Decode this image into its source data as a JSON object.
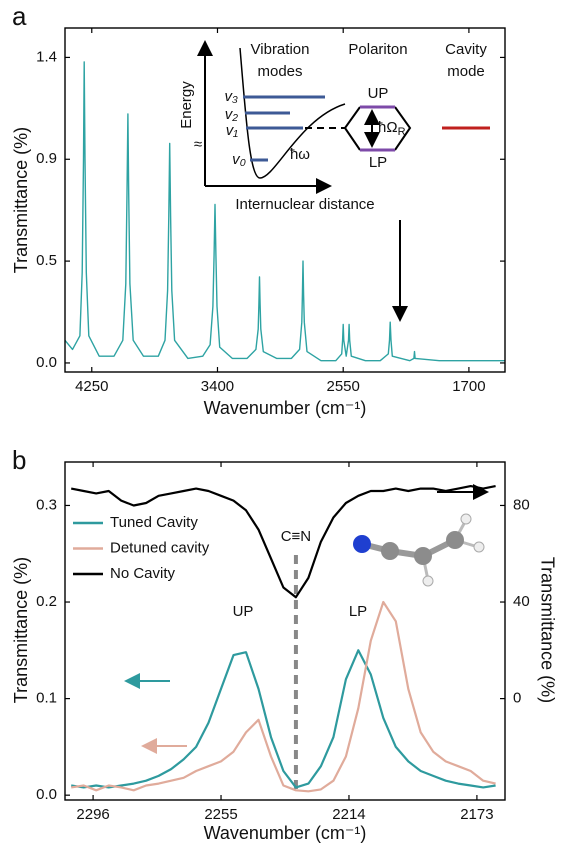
{
  "chart_data": [
    {
      "type": "line",
      "panel_label": "a",
      "xlabel": "Wavenumber (cm⁻¹)",
      "ylabel": "Transmittance (%)",
      "xlim": [
        4431,
        1456
      ],
      "xticks": [
        4250,
        3400,
        2550,
        1700
      ],
      "ylim": [
        -0.04,
        1.48
      ],
      "yticks": [
        {
          "value": 0,
          "label": "0.0"
        },
        {
          "value": 0.45,
          "label": "0.5"
        },
        0.9,
        {
          "value": 1.35,
          "label": "1.4"
        }
      ],
      "color": "#2ea3a3",
      "x": [
        4431,
        4380,
        4330,
        4315,
        4306,
        4301,
        4296,
        4287,
        4270,
        4200,
        4100,
        4040,
        4020,
        4012,
        4006,
        4000,
        3992,
        3970,
        3900,
        3800,
        3755,
        3737,
        3729,
        3723,
        3717,
        3709,
        3690,
        3600,
        3500,
        3450,
        3431,
        3423,
        3417,
        3411,
        3403,
        3385,
        3300,
        3200,
        3140,
        3125,
        3120,
        3116,
        3112,
        3107,
        3090,
        3000,
        2900,
        2845,
        2830,
        2826,
        2822,
        2818,
        2813,
        2795,
        2700,
        2600,
        2560,
        2554,
        2550,
        2546,
        2530,
        2514,
        2510,
        2506,
        2495,
        2400,
        2300,
        2245,
        2237,
        2232,
        2227,
        2218,
        2100,
        2072,
        2068,
        2064,
        1900,
        1700,
        1456
      ],
      "values": [
        0.1,
        0.06,
        0.12,
        0.4,
        0.9,
        1.33,
        0.9,
        0.4,
        0.12,
        0.03,
        0.03,
        0.1,
        0.35,
        0.75,
        1.1,
        0.75,
        0.35,
        0.1,
        0.03,
        0.03,
        0.1,
        0.32,
        0.65,
        0.97,
        0.65,
        0.32,
        0.1,
        0.02,
        0.03,
        0.08,
        0.25,
        0.48,
        0.7,
        0.48,
        0.25,
        0.07,
        0.02,
        0.02,
        0.06,
        0.15,
        0.26,
        0.38,
        0.26,
        0.15,
        0.05,
        0.02,
        0.02,
        0.06,
        0.18,
        0.3,
        0.45,
        0.3,
        0.18,
        0.05,
        0.01,
        0.01,
        0.04,
        0.1,
        0.17,
        0.1,
        0.03,
        0.1,
        0.17,
        0.1,
        0.03,
        0.01,
        0.01,
        0.04,
        0.1,
        0.18,
        0.1,
        0.03,
        0.01,
        0.02,
        0.05,
        0.02,
        0.01,
        0.01,
        0.01
      ],
      "inset": {
        "energy": "Energy",
        "break": "≈",
        "vibration": "Vibration",
        "modes": "modes",
        "distance": "Internuclear distance",
        "v3": "v₃",
        "v2": "v₂",
        "v1": "v₁",
        "v0": "v₀",
        "hw": "ħω",
        "polariton": "Polariton",
        "cavity": "Cavity",
        "mode": "mode",
        "up": "UP",
        "lp": "LP",
        "rabi": "ħΩ",
        "rabi_sub": "R"
      }
    },
    {
      "type": "line",
      "panel_label": "b",
      "xlabel": "Wavenumber (cm⁻¹)",
      "ylabel": "Transmittance (%)",
      "y2label": "Transmittance (%)",
      "xlim": [
        2305,
        2164
      ],
      "xticks": [
        2296,
        2255,
        2214,
        2173
      ],
      "ylim": [
        -0.005,
        0.345
      ],
      "yticks": [
        {
          "value": 0,
          "label": "0.0"
        },
        0.1,
        0.2,
        0.3
      ],
      "y2lim": [
        -42,
        98
      ],
      "y2ticks": [
        0,
        40,
        80
      ],
      "legend": "upper left",
      "reference_line": 2231,
      "reference_label": "C≡N",
      "up_label": "UP",
      "lp_label": "LP",
      "x": [
        2303,
        2299,
        2295,
        2291,
        2287,
        2283,
        2279,
        2275,
        2271,
        2267,
        2263,
        2259,
        2255,
        2251,
        2247,
        2243,
        2239,
        2235,
        2231,
        2227,
        2223,
        2219,
        2215,
        2211,
        2207,
        2203,
        2199,
        2195,
        2191,
        2187,
        2183,
        2179,
        2175,
        2171,
        2167
      ],
      "series": [
        {
          "name": "Tuned Cavity",
          "color": "#2e9a9e",
          "values": [
            0.01,
            0.008,
            0.01,
            0.008,
            0.01,
            0.012,
            0.015,
            0.02,
            0.027,
            0.037,
            0.05,
            0.075,
            0.11,
            0.145,
            0.148,
            0.11,
            0.06,
            0.025,
            0.008,
            0.012,
            0.03,
            0.06,
            0.12,
            0.15,
            0.125,
            0.08,
            0.05,
            0.035,
            0.025,
            0.02,
            0.015,
            0.012,
            0.01,
            0.008,
            0.01
          ]
        },
        {
          "name": "Detuned cavity",
          "color": "#e0ab9b",
          "values": [
            0.008,
            0.01,
            0.005,
            0.01,
            0.008,
            0.005,
            0.01,
            0.012,
            0.015,
            0.018,
            0.025,
            0.03,
            0.035,
            0.045,
            0.065,
            0.078,
            0.04,
            0.01,
            0.005,
            0.004,
            0.006,
            0.015,
            0.04,
            0.09,
            0.16,
            0.2,
            0.18,
            0.11,
            0.065,
            0.045,
            0.035,
            0.03,
            0.025,
            0.015,
            0.012
          ]
        },
        {
          "name": "No Cavity",
          "color": "#000000",
          "axis": "y2",
          "values": [
            87,
            86,
            85,
            86,
            82,
            80,
            81,
            84,
            85,
            86,
            87,
            86,
            84,
            82,
            78,
            70,
            58,
            46,
            42,
            50,
            65,
            75,
            81,
            84,
            86,
            86,
            87,
            86,
            87,
            87,
            86,
            87,
            88,
            87,
            88
          ]
        }
      ]
    }
  ]
}
